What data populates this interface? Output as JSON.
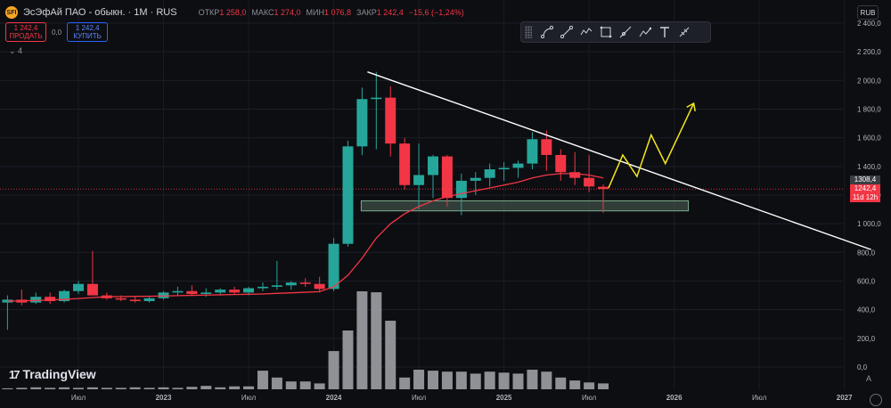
{
  "header": {
    "logo_text": "SFI",
    "title": "ЭсЭфАй ПАО - обыкн. · 1М · RUS",
    "open_label": "ОТКР",
    "open_value": "1 258,0",
    "high_label": "МАКС",
    "high_value": "1 274,0",
    "low_label": "МИН",
    "low_value": "1 076,8",
    "close_label": "ЗАКР",
    "close_value": "1 242,4",
    "change": "−15,6 (−1,24%)"
  },
  "trade": {
    "sell_price": "1 242,4",
    "sell_label": "ПРОДАТЬ",
    "spread": "0,0",
    "buy_price": "1 242,4",
    "buy_label": "КУПИТЬ"
  },
  "indicator_toggle": "⌄ 4",
  "currency": "RUB",
  "branding": {
    "name": "TradingView",
    "mark": "17"
  },
  "bottom_right_label": "A",
  "toolbar_icons": [
    "drag-handle-icon",
    "path-icon",
    "line-icon",
    "polyline-icon",
    "rectangle-icon",
    "ray-icon",
    "brush-icon",
    "text-icon",
    "measure-icon"
  ],
  "price_labels": {
    "level": "1308,4",
    "last": "1242,4",
    "countdown": "11d 12h"
  },
  "colors": {
    "up": "#26a69a",
    "down": "#f23645",
    "ma": "#f23645",
    "volume": "#9e9fa6",
    "trendline": "#ffffff",
    "projection": "#f5e71b",
    "zone": "#4a5e52"
  },
  "chart_data": {
    "type": "candlestick",
    "ylim": [
      0,
      2400
    ],
    "y_ticks": [
      "2 400,0",
      "2 200,0",
      "2 000,0",
      "1 800,0",
      "1 600,0",
      "1 400,0",
      "1 200,0",
      "1 000,0",
      "800,0",
      "600,0",
      "400,0",
      "200,0",
      "0,0"
    ],
    "x_tick_labels": [
      {
        "label": "Июл",
        "date": "2022-07"
      },
      {
        "label": "2023",
        "date": "2023-01"
      },
      {
        "label": "Июл",
        "date": "2023-07"
      },
      {
        "label": "2024",
        "date": "2024-01"
      },
      {
        "label": "Июл",
        "date": "2024-07"
      },
      {
        "label": "2025",
        "date": "2025-01"
      },
      {
        "label": "Июл",
        "date": "2025-07"
      },
      {
        "label": "2026",
        "date": "2026-01"
      },
      {
        "label": "Июл",
        "date": "2026-07"
      },
      {
        "label": "2027",
        "date": "2027-01"
      }
    ],
    "candles": [
      {
        "t": "2022-02",
        "o": 450,
        "h": 500,
        "l": 260,
        "c": 470
      },
      {
        "t": "2022-03",
        "o": 470,
        "h": 540,
        "l": 430,
        "c": 450
      },
      {
        "t": "2022-04",
        "o": 450,
        "h": 520,
        "l": 440,
        "c": 490
      },
      {
        "t": "2022-05",
        "o": 490,
        "h": 520,
        "l": 440,
        "c": 460
      },
      {
        "t": "2022-06",
        "o": 460,
        "h": 540,
        "l": 450,
        "c": 530
      },
      {
        "t": "2022-07",
        "o": 530,
        "h": 600,
        "l": 510,
        "c": 580
      },
      {
        "t": "2022-08",
        "o": 580,
        "h": 810,
        "l": 500,
        "c": 500
      },
      {
        "t": "2022-09",
        "o": 500,
        "h": 520,
        "l": 470,
        "c": 480
      },
      {
        "t": "2022-10",
        "o": 480,
        "h": 500,
        "l": 460,
        "c": 470
      },
      {
        "t": "2022-11",
        "o": 470,
        "h": 490,
        "l": 450,
        "c": 460
      },
      {
        "t": "2022-12",
        "o": 460,
        "h": 490,
        "l": 450,
        "c": 480
      },
      {
        "t": "2023-01",
        "o": 480,
        "h": 530,
        "l": 470,
        "c": 520
      },
      {
        "t": "2023-02",
        "o": 520,
        "h": 560,
        "l": 500,
        "c": 530
      },
      {
        "t": "2023-03",
        "o": 530,
        "h": 570,
        "l": 500,
        "c": 510
      },
      {
        "t": "2023-04",
        "o": 510,
        "h": 550,
        "l": 490,
        "c": 520
      },
      {
        "t": "2023-05",
        "o": 520,
        "h": 550,
        "l": 500,
        "c": 540
      },
      {
        "t": "2023-06",
        "o": 540,
        "h": 560,
        "l": 510,
        "c": 520
      },
      {
        "t": "2023-07",
        "o": 520,
        "h": 560,
        "l": 500,
        "c": 550
      },
      {
        "t": "2023-08",
        "o": 550,
        "h": 590,
        "l": 530,
        "c": 560
      },
      {
        "t": "2023-09",
        "o": 560,
        "h": 740,
        "l": 540,
        "c": 570
      },
      {
        "t": "2023-10",
        "o": 570,
        "h": 600,
        "l": 540,
        "c": 590
      },
      {
        "t": "2023-11",
        "o": 590,
        "h": 620,
        "l": 560,
        "c": 580
      },
      {
        "t": "2023-12",
        "o": 580,
        "h": 630,
        "l": 520,
        "c": 545
      },
      {
        "t": "2024-01",
        "o": 545,
        "h": 900,
        "l": 530,
        "c": 860
      },
      {
        "t": "2024-02",
        "o": 860,
        "h": 1580,
        "l": 840,
        "c": 1540
      },
      {
        "t": "2024-03",
        "o": 1540,
        "h": 1950,
        "l": 1480,
        "c": 1870
      },
      {
        "t": "2024-04",
        "o": 1870,
        "h": 2060,
        "l": 1520,
        "c": 1880
      },
      {
        "t": "2024-05",
        "o": 1880,
        "h": 1960,
        "l": 1470,
        "c": 1560
      },
      {
        "t": "2024-06",
        "o": 1560,
        "h": 1600,
        "l": 1240,
        "c": 1270
      },
      {
        "t": "2024-07",
        "o": 1270,
        "h": 1560,
        "l": 1100,
        "c": 1340
      },
      {
        "t": "2024-08",
        "o": 1340,
        "h": 1480,
        "l": 1180,
        "c": 1470
      },
      {
        "t": "2024-09",
        "o": 1470,
        "h": 1480,
        "l": 1120,
        "c": 1180
      },
      {
        "t": "2024-10",
        "o": 1180,
        "h": 1350,
        "l": 1060,
        "c": 1300
      },
      {
        "t": "2024-11",
        "o": 1300,
        "h": 1360,
        "l": 1200,
        "c": 1320
      },
      {
        "t": "2024-12",
        "o": 1320,
        "h": 1420,
        "l": 1260,
        "c": 1380
      },
      {
        "t": "2025-01",
        "o": 1380,
        "h": 1430,
        "l": 1300,
        "c": 1390
      },
      {
        "t": "2025-02",
        "o": 1390,
        "h": 1440,
        "l": 1320,
        "c": 1420
      },
      {
        "t": "2025-03",
        "o": 1420,
        "h": 1640,
        "l": 1380,
        "c": 1590
      },
      {
        "t": "2025-04",
        "o": 1590,
        "h": 1650,
        "l": 1370,
        "c": 1480
      },
      {
        "t": "2025-05",
        "o": 1480,
        "h": 1520,
        "l": 1300,
        "c": 1360
      },
      {
        "t": "2025-06",
        "o": 1360,
        "h": 1500,
        "l": 1270,
        "c": 1320
      },
      {
        "t": "2025-07",
        "o": 1320,
        "h": 1480,
        "l": 1220,
        "c": 1260
      },
      {
        "t": "2025-08",
        "o": 1258,
        "h": 1274,
        "l": 1076.8,
        "c": 1242.4
      }
    ],
    "moving_average": [
      460,
      462,
      465,
      468,
      472,
      478,
      485,
      490,
      492,
      493,
      494,
      496,
      498,
      500,
      502,
      504,
      506,
      508,
      510,
      514,
      518,
      522,
      526,
      560,
      640,
      760,
      900,
      1000,
      1070,
      1120,
      1160,
      1190,
      1210,
      1230,
      1250,
      1270,
      1290,
      1320,
      1340,
      1350,
      1350,
      1340,
      1320
    ],
    "volume_scale_max": 2400,
    "volume": [
      20,
      20,
      20,
      20,
      20,
      20,
      20,
      20,
      20,
      20,
      20,
      20,
      20,
      20,
      20,
      20,
      20,
      20,
      20,
      20,
      20,
      20,
      20,
      20,
      20,
      20,
      20,
      20,
      20,
      20,
      20,
      20,
      20,
      20,
      20,
      20,
      20,
      20,
      20,
      20,
      20,
      20,
      20
    ],
    "volume_bars": [
      10,
      15,
      20,
      15,
      20,
      15,
      20,
      15,
      15,
      20,
      15,
      20,
      15,
      25,
      35,
      20,
      30,
      30,
      190,
      120,
      80,
      80,
      60,
      390,
      600,
      1000,
      990,
      700,
      120,
      200,
      190,
      180,
      180,
      160,
      180,
      170,
      160,
      200,
      180,
      120,
      90,
      70,
      60
    ],
    "trendline": {
      "from": {
        "t": "2024-03",
        "y": 2060
      },
      "to": {
        "t": "2027-01",
        "y": 820
      }
    },
    "support_zone": {
      "from": "2024-03",
      "to": "2026-02",
      "y_low": 1090,
      "y_high": 1160
    },
    "projection": [
      {
        "t": "2025-08",
        "y": 1250
      },
      {
        "t": "2025-09",
        "y": 1480
      },
      {
        "t": "2025-10",
        "y": 1330
      },
      {
        "t": "2025-11",
        "y": 1620
      },
      {
        "t": "2025-12",
        "y": 1420
      },
      {
        "t": "2026-02",
        "y": 1840
      }
    ],
    "price_line": 1242.4
  }
}
